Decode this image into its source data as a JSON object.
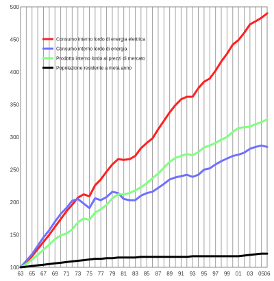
{
  "chart_data": {
    "type": "line",
    "x": [
      1963,
      1964,
      1965,
      1966,
      1967,
      1968,
      1969,
      1970,
      1971,
      1972,
      1973,
      1974,
      1975,
      1976,
      1977,
      1978,
      1979,
      1980,
      1981,
      1982,
      1983,
      1984,
      1985,
      1986,
      1987,
      1988,
      1989,
      1990,
      1991,
      1992,
      1993,
      1994,
      1995,
      1996,
      1997,
      1998,
      1999,
      2000,
      2001,
      2002,
      2003,
      2004,
      2005,
      2006
    ],
    "series": [
      {
        "name": "Consumo interno lordo di energia elettrica",
        "color": "#ff2020",
        "values": [
          100,
          108,
          117,
          128,
          139,
          150,
          162,
          174,
          186,
          196,
          207,
          212,
          209,
          226,
          235,
          247,
          258,
          266,
          265,
          266,
          271,
          283,
          291,
          298,
          312,
          325,
          338,
          349,
          358,
          362,
          362,
          375,
          385,
          390,
          402,
          416,
          428,
          442,
          449,
          460,
          473,
          478,
          483,
          490
        ]
      },
      {
        "name": "Consumo interno lordo di energia",
        "color": "#7070ff",
        "values": [
          100,
          110,
          120,
          133,
          146,
          157,
          170,
          182,
          191,
          202,
          205,
          198,
          191,
          206,
          203,
          208,
          216,
          214,
          205,
          203,
          203,
          210,
          214,
          216,
          222,
          228,
          235,
          238,
          240,
          242,
          239,
          242,
          250,
          252,
          258,
          263,
          267,
          271,
          273,
          276,
          282,
          285,
          287,
          285
        ]
      },
      {
        "name": "Prodotto interno lordo ai prezzi di mercato",
        "color": "#80ff80",
        "values": [
          100,
          105,
          112,
          119,
          127,
          135,
          143,
          149,
          152,
          158,
          169,
          175,
          173,
          184,
          189,
          196,
          206,
          212,
          212,
          214,
          218,
          223,
          229,
          237,
          244,
          253,
          262,
          268,
          271,
          274,
          272,
          277,
          284,
          287,
          291,
          296,
          300,
          308,
          314,
          315,
          316,
          320,
          323,
          327
        ]
      },
      {
        "name": "Popolazione residente a metà anno",
        "color": "#000000",
        "values": [
          100,
          101,
          102,
          103,
          104,
          105,
          106,
          107,
          108,
          109,
          110,
          111,
          112,
          113,
          113,
          114,
          114,
          115,
          115,
          115,
          115,
          116,
          116,
          116,
          116,
          116,
          116,
          116,
          116,
          116,
          117,
          117,
          117,
          117,
          117,
          117,
          117,
          117,
          117,
          118,
          119,
          120,
          121,
          121
        ]
      }
    ],
    "xticks": [
      "63",
      "65",
      "67",
      "69",
      "71",
      "73",
      "75",
      "77",
      "79",
      "81",
      "83",
      "85",
      "87",
      "89",
      "91",
      "93",
      "95",
      "97",
      "99",
      "01",
      "03",
      "05",
      "06"
    ],
    "yticks": [
      "100",
      "150",
      "200",
      "250",
      "300",
      "350",
      "400",
      "450",
      "500"
    ],
    "ylim": [
      100,
      500
    ],
    "xlim": [
      1963,
      2006
    ],
    "grid": "vertical",
    "legend_position": "top-left"
  }
}
